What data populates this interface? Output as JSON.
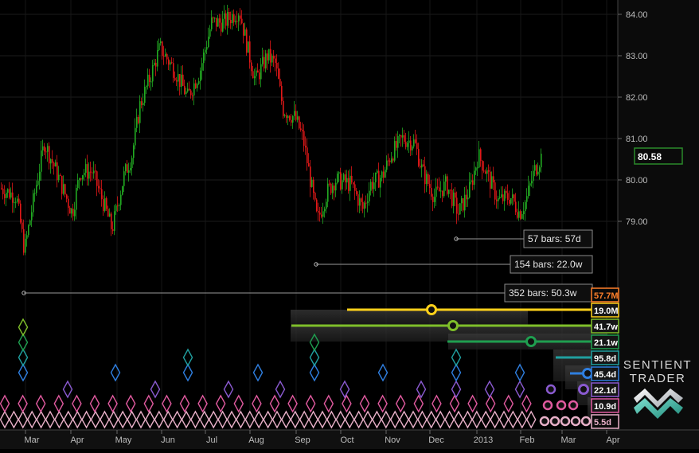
{
  "chart_data": {
    "type": "candlestick",
    "price_axis": {
      "ticks": [
        "84.00",
        "83.00",
        "82.00",
        "81.00",
        "80.00",
        "79.00"
      ],
      "tick_values": [
        84,
        83,
        82,
        81,
        80,
        79
      ]
    },
    "time_axis": {
      "labels": [
        "Mar",
        "Apr",
        "May",
        "Jun",
        "Jul",
        "Aug",
        "Sep",
        "Oct",
        "Nov",
        "Dec",
        "2013",
        "Feb",
        "Mar",
        "Apr"
      ]
    },
    "last_price": {
      "label": "80.58",
      "value": 80.58,
      "color": "#2a8a2a"
    },
    "up_color": "#22aa22",
    "down_color": "#e01818",
    "price_keypoints": [
      [
        0,
        79.8
      ],
      [
        20,
        79.6
      ],
      [
        30,
        78.3
      ],
      [
        45,
        79.9
      ],
      [
        55,
        80.9
      ],
      [
        70,
        80.2
      ],
      [
        90,
        79.2
      ],
      [
        100,
        80.2
      ],
      [
        115,
        80.2
      ],
      [
        130,
        79.4
      ],
      [
        140,
        78.8
      ],
      [
        155,
        80.1
      ],
      [
        165,
        80.6
      ],
      [
        175,
        81.8
      ],
      [
        190,
        82.6
      ],
      [
        200,
        83.2
      ],
      [
        210,
        82.9
      ],
      [
        220,
        82.6
      ],
      [
        235,
        82.0
      ],
      [
        250,
        82.6
      ],
      [
        265,
        83.8
      ],
      [
        280,
        83.8
      ],
      [
        300,
        84.1
      ],
      [
        310,
        83.2
      ],
      [
        320,
        82.4
      ],
      [
        335,
        83.0
      ],
      [
        345,
        82.8
      ],
      [
        355,
        81.7
      ],
      [
        370,
        81.5
      ],
      [
        380,
        81.0
      ],
      [
        390,
        79.9
      ],
      [
        398,
        79.0
      ],
      [
        410,
        79.7
      ],
      [
        420,
        80.0
      ],
      [
        440,
        79.9
      ],
      [
        455,
        79.3
      ],
      [
        465,
        79.9
      ],
      [
        480,
        80.1
      ],
      [
        490,
        80.6
      ],
      [
        505,
        81.0
      ],
      [
        520,
        80.9
      ],
      [
        530,
        80.2
      ],
      [
        545,
        79.6
      ],
      [
        560,
        79.9
      ],
      [
        575,
        79.2
      ],
      [
        590,
        79.8
      ],
      [
        600,
        80.6
      ],
      [
        610,
        80.2
      ],
      [
        625,
        79.5
      ],
      [
        640,
        79.6
      ],
      [
        652,
        79.2
      ],
      [
        660,
        79.5
      ],
      [
        670,
        80.2
      ],
      [
        680,
        80.6
      ]
    ],
    "cycle_annotations": [
      {
        "label": "57 bars: 57d",
        "value": 57
      },
      {
        "label": "154 bars: 22.0w",
        "value": 154
      },
      {
        "label": "352 bars: 50.3w",
        "value": 352
      }
    ],
    "cycle_periods": [
      {
        "label": "57.7M",
        "color": "#ff7f2a",
        "style": "outline",
        "line": false
      },
      {
        "label": "19.0M",
        "color": "#ffd11a",
        "style": "filled",
        "line": true,
        "phase_marker": true
      },
      {
        "label": "41.7w",
        "color": "#7fbf2a",
        "style": "filled",
        "line": true,
        "phase_marker": true
      },
      {
        "label": "21.1w",
        "color": "#1f9e4f",
        "style": "filled",
        "line": true,
        "phase_marker": true
      },
      {
        "label": "95.8d",
        "color": "#20a0a0",
        "style": "filled",
        "line": true,
        "phase_marker": false
      },
      {
        "label": "45.4d",
        "color": "#2f7fe0",
        "style": "filled",
        "line": true,
        "phase_marker": true
      },
      {
        "label": "22.1d",
        "color": "#8a5ad0",
        "style": "filled",
        "line": false,
        "phase_marker": true
      },
      {
        "label": "10.9d",
        "color": "#e05a9f",
        "style": "filled",
        "line": false,
        "phase_marker": true
      },
      {
        "label": "5.5d",
        "color": "#e8b0c8",
        "style": "outline",
        "line": false,
        "phase_marker": true
      }
    ],
    "brand": {
      "line1": "SENTIENT",
      "line2": "TRADER"
    }
  }
}
